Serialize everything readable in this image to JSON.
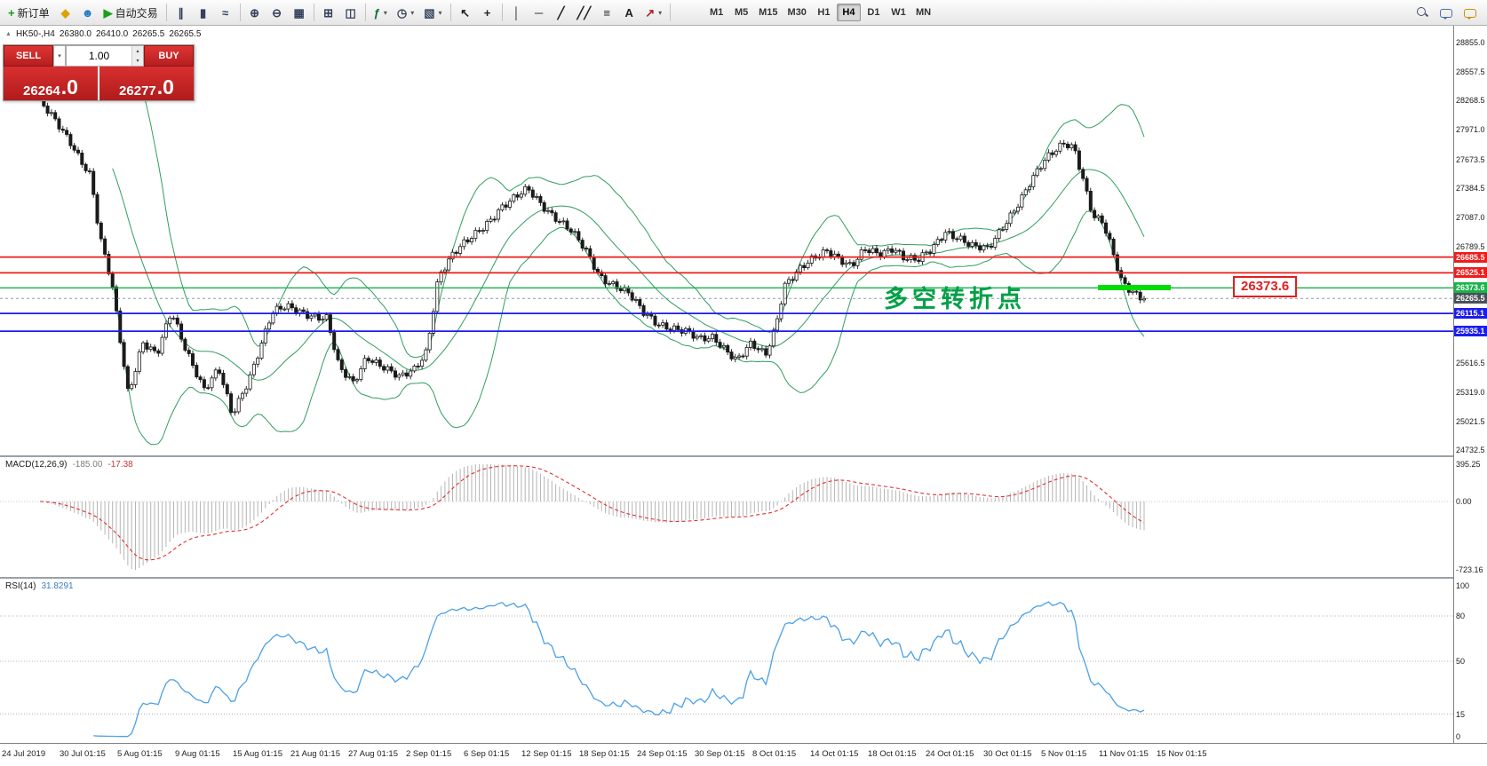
{
  "toolbar": {
    "groups": [
      {
        "items": [
          {
            "name": "new-order",
            "icon": "new-order-icon",
            "label": "新订单"
          },
          {
            "name": "alerts",
            "icon": "diamond-icon"
          },
          {
            "name": "community",
            "icon": "person-icon"
          },
          {
            "name": "autotrading",
            "icon": "play-icon",
            "label": "自动交易"
          }
        ]
      },
      {
        "items": [
          {
            "name": "bar-chart-mode",
            "icon": "bar-chart-icon"
          },
          {
            "name": "candlestick-mode",
            "icon": "candlestick-icon"
          },
          {
            "name": "line-chart-mode",
            "icon": "line-chart-icon"
          }
        ]
      },
      {
        "items": [
          {
            "name": "zoom-in",
            "icon": "zoom-in-icon"
          },
          {
            "name": "zoom-out",
            "icon": "zoom-out-icon"
          },
          {
            "name": "tile-windows",
            "icon": "tile-windows-icon"
          }
        ]
      },
      {
        "items": [
          {
            "name": "new-chart",
            "icon": "new-window-icon"
          },
          {
            "name": "profiles",
            "icon": "profiles-icon"
          }
        ]
      },
      {
        "items": [
          {
            "name": "indicators",
            "icon": "indicators-icon",
            "dropdown": true
          },
          {
            "name": "periods",
            "icon": "clock-icon",
            "dropdown": true
          },
          {
            "name": "templates",
            "icon": "template-icon",
            "dropdown": true
          }
        ]
      },
      {
        "items": [
          {
            "name": "cursor",
            "icon": "cursor-icon"
          },
          {
            "name": "crosshair",
            "icon": "crosshair-icon"
          }
        ]
      },
      {
        "items": [
          {
            "name": "vertical-line",
            "icon": "vertical-line-icon"
          },
          {
            "name": "horizontal-line",
            "icon": "horizontal-line-icon"
          },
          {
            "name": "trendline",
            "icon": "trendline-icon"
          },
          {
            "name": "channel",
            "icon": "channel-icon"
          },
          {
            "name": "fibonacci",
            "icon": "fibonacci-icon"
          },
          {
            "name": "text",
            "icon": "text-icon"
          },
          {
            "name": "arrows",
            "icon": "arrows-icon",
            "dropdown": true
          }
        ]
      }
    ],
    "timeframes": [
      "M1",
      "M5",
      "M15",
      "M30",
      "H1",
      "H4",
      "D1",
      "W1",
      "MN"
    ],
    "active_timeframe": "H4",
    "right_items": [
      {
        "name": "search",
        "icon": "search-icon"
      },
      {
        "name": "chat",
        "icon": "chat-icon"
      },
      {
        "name": "news-chat",
        "icon": "chat-gold-icon"
      }
    ]
  },
  "chart": {
    "symbol_period": "HK50-,H4",
    "quote_open": "26380.0",
    "quote_high": "26410.0",
    "quote_low": "26265.5",
    "quote_close": "26265.5",
    "annotation": "多空转折点",
    "callout_price": "26373.6"
  },
  "trade_panel": {
    "sell_label": "SELL",
    "buy_label": "BUY",
    "volume": "1.00",
    "sell_price_main": "26264",
    "sell_price_frac": ".0",
    "buy_price_main": "26277",
    "buy_price_frac": ".0"
  },
  "price_axis": {
    "plain_labels": [
      "28855.0",
      "28557.5",
      "28268.5",
      "27971.0",
      "27673.5",
      "27384.5",
      "27087.0",
      "26789.5",
      "25616.5",
      "25319.0",
      "25021.5",
      "24732.5"
    ],
    "line_labels": [
      {
        "price": 26685.5,
        "text": "26685.5",
        "color": "#ee1c1c",
        "kind": "resistance"
      },
      {
        "price": 26525.1,
        "text": "26525.1",
        "color": "#ee1c1c",
        "kind": "resistance"
      },
      {
        "price": 26373.6,
        "text": "26373.6",
        "color": "#18b34a",
        "kind": "pivot"
      },
      {
        "price": 26265.5,
        "text": "26265.5",
        "color": "#4a4f58",
        "kind": "current"
      },
      {
        "price": 26115.1,
        "text": "26115.1",
        "color": "#1c1cee",
        "kind": "support"
      },
      {
        "price": 25935.1,
        "text": "25935.1",
        "color": "#1c1cee",
        "kind": "support"
      }
    ]
  },
  "macd": {
    "name": "MACD(12,26,9)",
    "value_main": "-185.00",
    "value_signal": "-17.38",
    "axis": [
      "395.25",
      "0.00",
      "-723.16"
    ]
  },
  "rsi": {
    "name": "RSI(14)",
    "value": "31.8291",
    "axis": [
      "100",
      "80",
      "50",
      "15",
      "0"
    ],
    "levels": [
      80,
      50,
      15
    ]
  },
  "chart_data": {
    "type": "candlestick",
    "symbol": "HK50",
    "timeframe": "H4",
    "title": "HK50-,H4 26380.0 26410.0 26265.5 26265.5",
    "ohlc_current": {
      "open": 26380.0,
      "high": 26410.0,
      "low": 26265.5,
      "close": 26265.5
    },
    "candles_count": 290,
    "last_close": 26265.5,
    "ylim": [
      24732.5,
      28855.0
    ],
    "price_path": [
      [
        0,
        28250
      ],
      [
        0.028,
        27850
      ],
      [
        0.046,
        27510
      ],
      [
        0.054,
        26890
      ],
      [
        0.065,
        26410
      ],
      [
        0.08,
        25300
      ],
      [
        0.093,
        25840
      ],
      [
        0.106,
        25690
      ],
      [
        0.119,
        26120
      ],
      [
        0.131,
        25785
      ],
      [
        0.149,
        25355
      ],
      [
        0.162,
        25545
      ],
      [
        0.174,
        25070
      ],
      [
        0.189,
        25450
      ],
      [
        0.198,
        25740
      ],
      [
        0.21,
        26120
      ],
      [
        0.223,
        26170
      ],
      [
        0.24,
        26120
      ],
      [
        0.26,
        26070
      ],
      [
        0.271,
        25545
      ],
      [
        0.284,
        25400
      ],
      [
        0.296,
        25690
      ],
      [
        0.309,
        25595
      ],
      [
        0.326,
        25450
      ],
      [
        0.339,
        25545
      ],
      [
        0.35,
        25740
      ],
      [
        0.361,
        26500
      ],
      [
        0.374,
        26700
      ],
      [
        0.387,
        26840
      ],
      [
        0.404,
        27030
      ],
      [
        0.417,
        27180
      ],
      [
        0.43,
        27270
      ],
      [
        0.442,
        27370
      ],
      [
        0.455,
        27220
      ],
      [
        0.468,
        27080
      ],
      [
        0.481,
        26940
      ],
      [
        0.494,
        26750
      ],
      [
        0.507,
        26500
      ],
      [
        0.52,
        26410
      ],
      [
        0.533,
        26310
      ],
      [
        0.546,
        26120
      ],
      [
        0.558,
        26030
      ],
      [
        0.571,
        25980
      ],
      [
        0.584,
        25930
      ],
      [
        0.597,
        25840
      ],
      [
        0.61,
        25880
      ],
      [
        0.623,
        25740
      ],
      [
        0.631,
        25640
      ],
      [
        0.644,
        25790
      ],
      [
        0.657,
        25690
      ],
      [
        0.666,
        25980
      ],
      [
        0.674,
        26410
      ],
      [
        0.687,
        26550
      ],
      [
        0.7,
        26650
      ],
      [
        0.713,
        26750
      ],
      [
        0.722,
        26700
      ],
      [
        0.735,
        26600
      ],
      [
        0.747,
        26750
      ],
      [
        0.76,
        26700
      ],
      [
        0.773,
        26790
      ],
      [
        0.782,
        26700
      ],
      [
        0.795,
        26650
      ],
      [
        0.808,
        26750
      ],
      [
        0.82,
        26940
      ],
      [
        0.833,
        26890
      ],
      [
        0.846,
        26790
      ],
      [
        0.859,
        26750
      ],
      [
        0.872,
        26990
      ],
      [
        0.885,
        27225
      ],
      [
        0.898,
        27465
      ],
      [
        0.911,
        27660
      ],
      [
        0.919,
        27750
      ],
      [
        0.928,
        27850
      ],
      [
        0.937,
        27800
      ],
      [
        0.945,
        27465
      ],
      [
        0.954,
        27080
      ],
      [
        0.962,
        27030
      ],
      [
        0.971,
        26750
      ],
      [
        0.979,
        26460
      ],
      [
        0.988,
        26360
      ],
      [
        0.995,
        26310
      ],
      [
        1,
        26265.5
      ]
    ],
    "levels": {
      "resistance": [
        26685.5,
        26525.1
      ],
      "pivot": 26373.6,
      "current_price": 26265.5,
      "support": [
        26115.1,
        25935.1
      ]
    },
    "highlight": {
      "price": 26373.6,
      "label": "26373.6"
    },
    "annotation": "多空转折点",
    "indicators": {
      "bollinger": {
        "period": 20,
        "deviation": 2
      },
      "macd": {
        "fast": 12,
        "slow": 26,
        "signal": 9,
        "value": -185.0,
        "signal_value": -17.38,
        "range": [
          -723.16,
          395.25
        ]
      },
      "rsi": {
        "period": 14,
        "value": 31.8291,
        "range": [
          0,
          100
        ]
      }
    },
    "x_tick_labels": [
      "24 Jul 2019",
      "30 Jul 01:15",
      "5 Aug 01:15",
      "9 Aug 01:15",
      "15 Aug 01:15",
      "21 Aug 01:15",
      "27 Aug 01:15",
      "2 Sep 01:15",
      "6 Sep 01:15",
      "12 Sep 01:15",
      "18 Sep 01:15",
      "24 Sep 01:15",
      "30 Sep 01:15",
      "8 Oct 01:15",
      "14 Oct 01:15",
      "18 Oct 01:15",
      "24 Oct 01:15",
      "30 Oct 01:15",
      "5 Nov 01:15",
      "11 Nov 01:15",
      "15 Nov 01:15"
    ]
  }
}
